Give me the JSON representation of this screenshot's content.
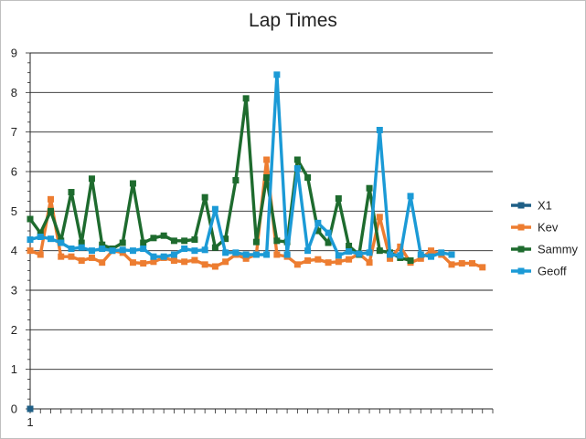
{
  "chart_data": {
    "type": "line",
    "title": "Lap Times",
    "xlabel": "",
    "ylabel": "",
    "ylim": [
      0,
      9
    ],
    "yticks": [
      0,
      1,
      2,
      3,
      4,
      5,
      6,
      7,
      8,
      9
    ],
    "xlim": [
      1,
      46
    ],
    "xtick_labels": [
      {
        "x": 1,
        "label": "1"
      }
    ],
    "grid": "horizontal",
    "legend": "right",
    "series": [
      {
        "name": "X1",
        "color": "#1f5f86",
        "marker": "square",
        "x": [
          1
        ],
        "values": [
          0
        ]
      },
      {
        "name": "Kev",
        "color": "#ed7d31",
        "marker": "square",
        "x": [
          1,
          2,
          3,
          4,
          5,
          6,
          7,
          8,
          9,
          10,
          11,
          12,
          13,
          14,
          15,
          16,
          17,
          18,
          19,
          20,
          21,
          22,
          23,
          24,
          25,
          26,
          27,
          28,
          29,
          30,
          31,
          32,
          33,
          34,
          35,
          36,
          37,
          38,
          39,
          40,
          41,
          42,
          43,
          44,
          45,
          46
        ],
        "values": [
          4.0,
          3.9,
          5.3,
          3.85,
          3.85,
          3.75,
          3.82,
          3.7,
          4.0,
          3.95,
          3.7,
          3.68,
          3.72,
          3.82,
          3.75,
          3.72,
          3.76,
          3.65,
          3.6,
          3.72,
          3.9,
          3.8,
          3.9,
          6.3,
          3.9,
          3.85,
          3.65,
          3.75,
          3.78,
          3.7,
          3.72,
          3.78,
          3.92,
          3.7,
          4.85,
          3.8,
          4.1,
          3.7,
          3.8,
          4.0,
          3.9,
          3.65,
          3.68,
          3.68,
          3.58,
          null
        ]
      },
      {
        "name": "Sammy",
        "color": "#1e6b2e",
        "marker": "square",
        "x": [
          1,
          2,
          3,
          4,
          5,
          6,
          7,
          8,
          9,
          10,
          11,
          12,
          13,
          14,
          15,
          16,
          17,
          18,
          19,
          20,
          21,
          22,
          23,
          24,
          25,
          26,
          27,
          28,
          29,
          30,
          31,
          32,
          33,
          34,
          35,
          36,
          37,
          38,
          39,
          40,
          41,
          42,
          43,
          44,
          45,
          46
        ],
        "values": [
          4.8,
          4.45,
          5.0,
          4.25,
          5.48,
          4.2,
          5.82,
          4.15,
          4.05,
          4.2,
          5.7,
          4.2,
          4.32,
          4.38,
          4.25,
          4.25,
          4.28,
          5.35,
          4.08,
          4.3,
          5.78,
          7.85,
          4.22,
          5.85,
          4.25,
          4.22,
          6.3,
          5.85,
          4.5,
          4.2,
          5.32,
          4.12,
          3.9,
          5.58,
          4.0,
          3.95,
          3.82,
          3.75,
          null,
          null,
          null,
          null,
          null,
          null,
          null,
          null
        ]
      },
      {
        "name": "Geoff",
        "color": "#1b9ad6",
        "marker": "square",
        "x": [
          1,
          2,
          3,
          4,
          5,
          6,
          7,
          8,
          9,
          10,
          11,
          12,
          13,
          14,
          15,
          16,
          17,
          18,
          19,
          20,
          21,
          22,
          23,
          24,
          25,
          26,
          27,
          28,
          29,
          30,
          31,
          32,
          33,
          34,
          35,
          36,
          37,
          38,
          39,
          40,
          41,
          42,
          43,
          44,
          45,
          46
        ],
        "values": [
          4.28,
          4.35,
          4.3,
          4.2,
          4.05,
          4.08,
          4.0,
          4.05,
          4.0,
          4.02,
          4.0,
          4.05,
          3.85,
          3.85,
          3.9,
          4.05,
          4.0,
          4.02,
          5.05,
          3.95,
          3.95,
          3.9,
          3.9,
          3.9,
          8.45,
          3.9,
          6.08,
          4.0,
          4.7,
          4.45,
          3.88,
          3.98,
          3.92,
          3.95,
          7.05,
          3.9,
          3.88,
          5.38,
          3.9,
          3.85,
          3.95,
          3.9,
          null,
          null,
          null,
          null
        ]
      }
    ]
  }
}
